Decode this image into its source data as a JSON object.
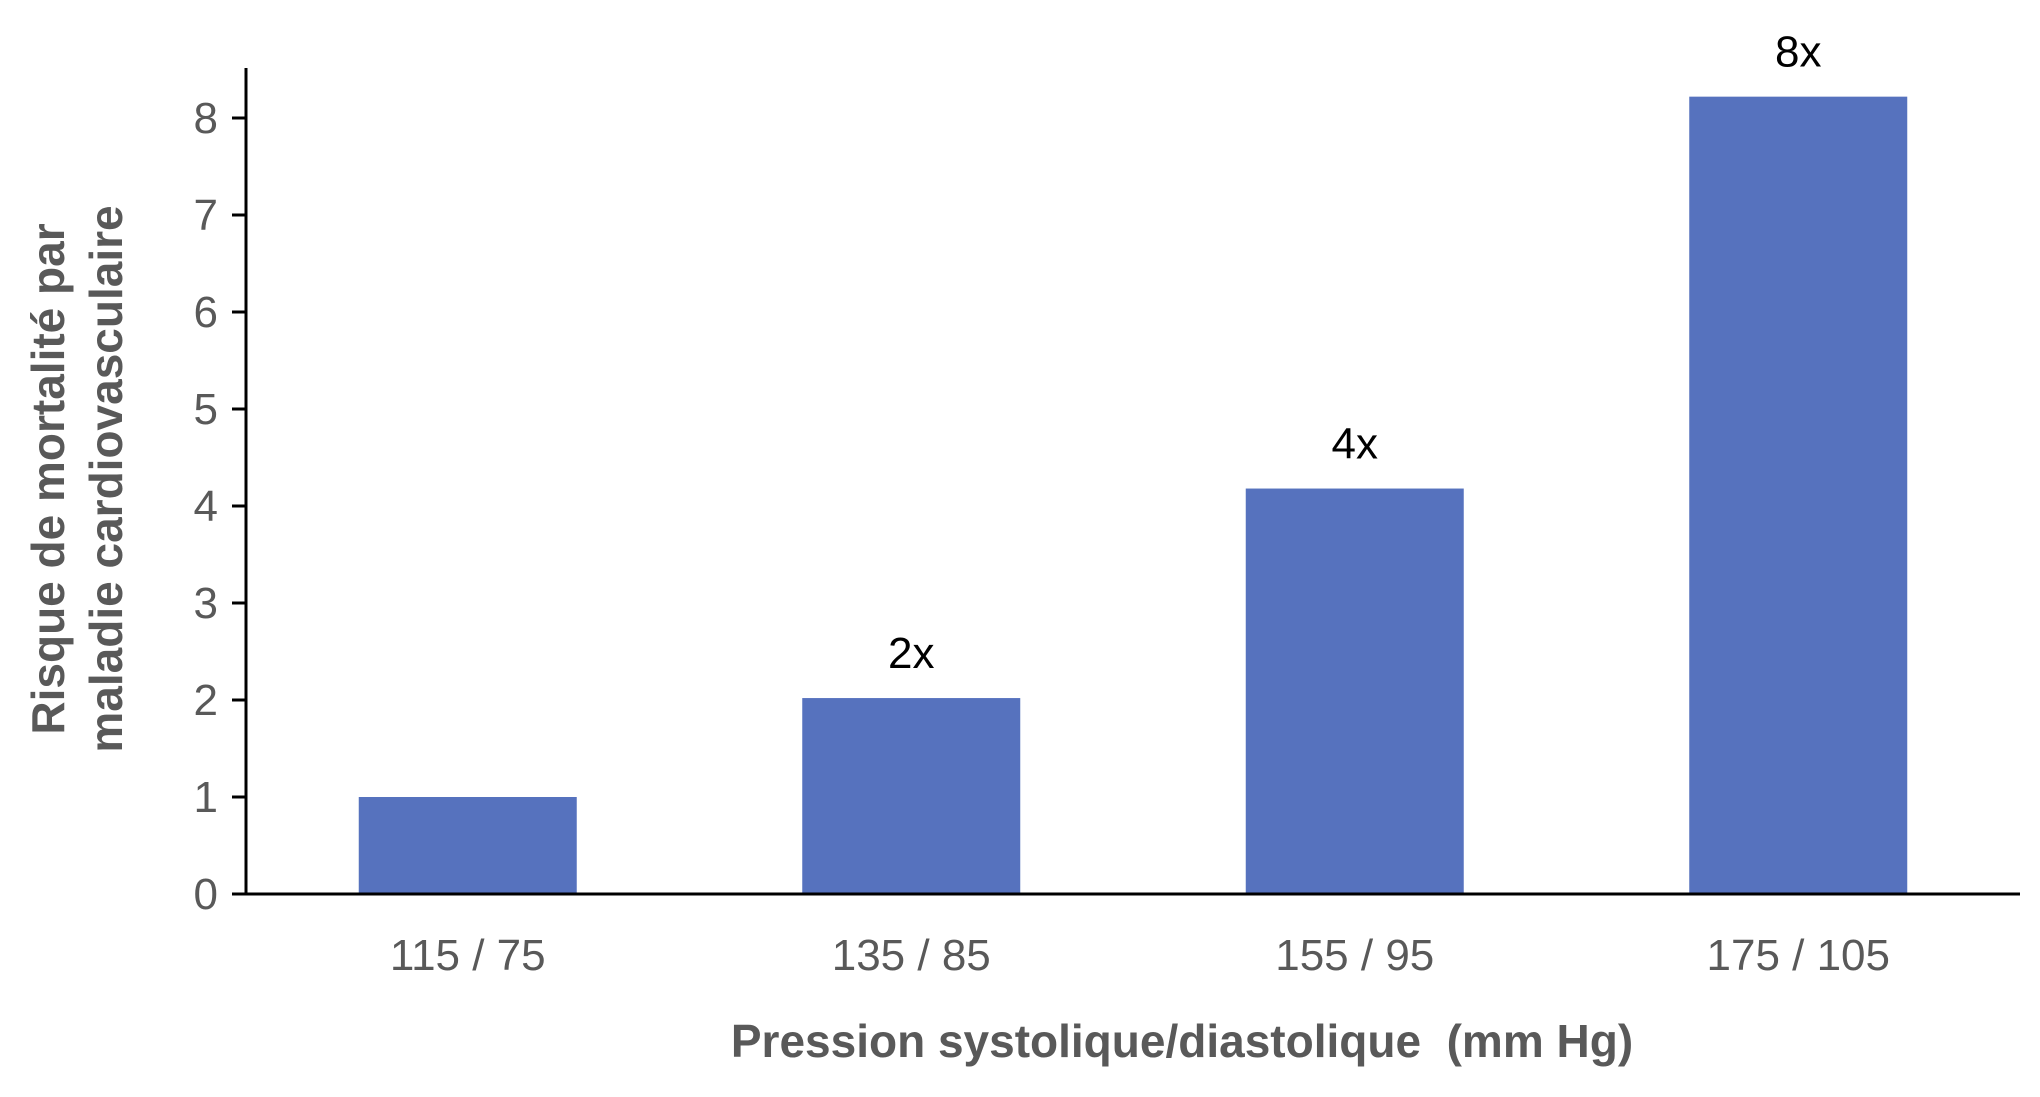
{
  "chart_data": {
    "type": "bar",
    "title": "",
    "categories": [
      "115 / 75",
      "135 / 85",
      "155 / 95",
      "175 / 105"
    ],
    "values": [
      1,
      2,
      4,
      8
    ],
    "display_values": [
      1.0,
      2.02,
      4.18,
      8.22
    ],
    "data_labels": [
      "",
      "2x",
      "4x",
      "8x"
    ],
    "xlabel": "Pression systolique/diastolique  (mm Hg)",
    "ylabel_lines": [
      "Risque de mortalité par",
      "maladie cardiovasculaire"
    ],
    "ylim": [
      0,
      8.5
    ],
    "yticks": [
      0,
      1,
      2,
      3,
      4,
      5,
      6,
      7,
      8
    ],
    "grid": false,
    "legend": "none",
    "colors": {
      "bar": "#5672BE",
      "axis": "#000000",
      "tick_text": "#595959",
      "data_label_text": "#000000"
    }
  }
}
